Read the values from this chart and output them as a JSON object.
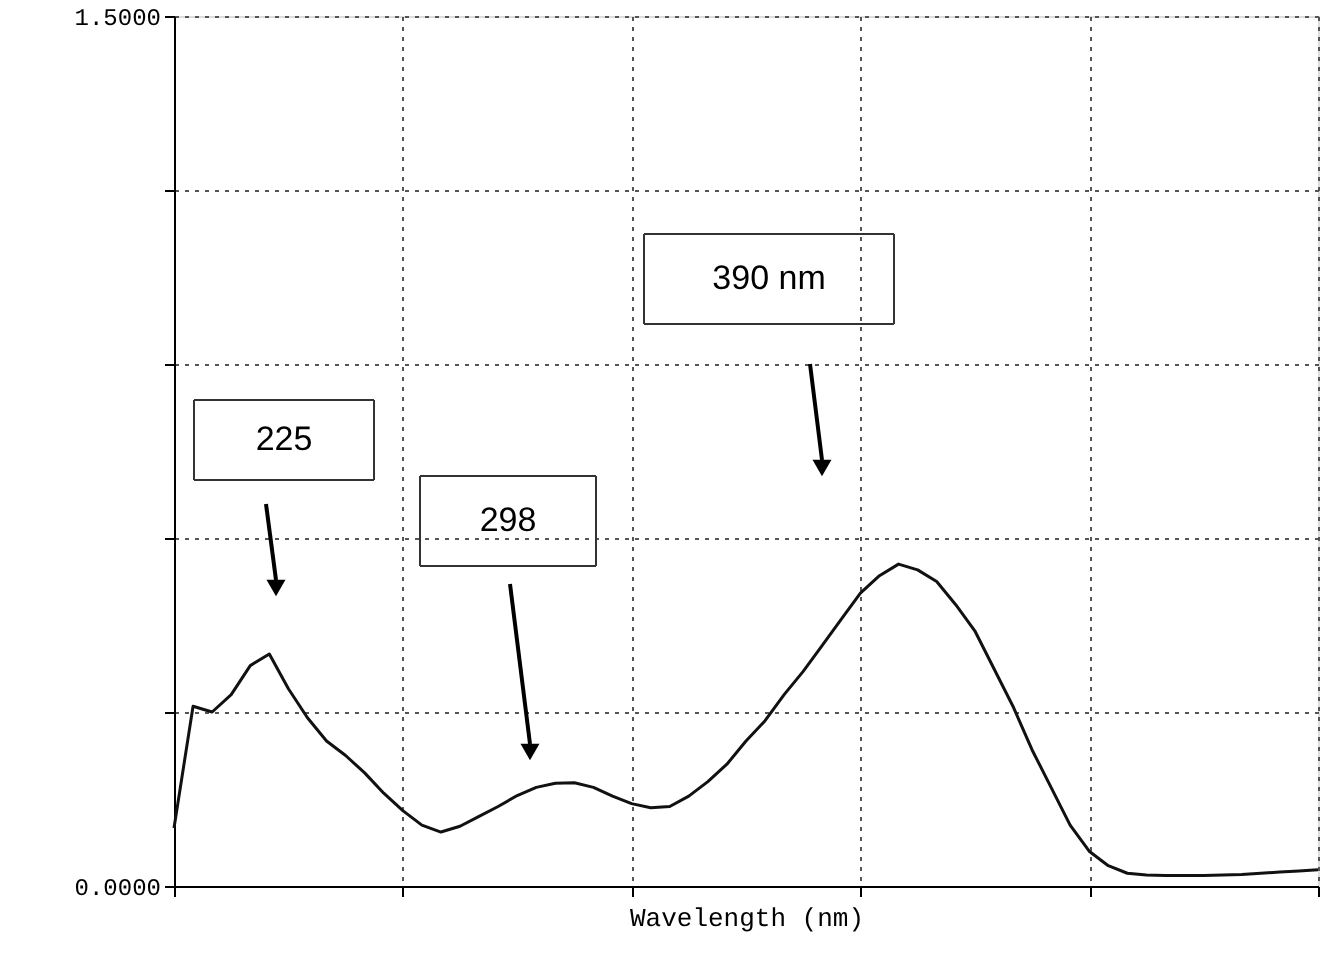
{
  "chart_data": {
    "type": "line",
    "xlabel": "Wavelength (nm)",
    "categories": [
      null,
      null,
      null,
      null,
      null,
      null,
      null,
      null,
      null,
      null,
      null,
      null,
      null,
      null,
      null,
      null,
      null,
      null,
      null,
      null,
      null,
      null,
      null,
      null,
      null,
      null,
      null,
      null,
      null,
      null,
      null,
      null,
      null,
      null,
      null,
      null,
      null,
      null,
      null,
      null,
      null,
      null,
      null,
      null,
      null,
      null,
      null,
      null,
      null,
      null,
      null,
      null,
      null,
      null,
      null,
      null,
      null,
      null,
      null,
      null,
      null
    ],
    "series": [
      {
        "color": "#111111",
        "values": [
          0.1,
          0.31,
          0.3,
          0.33,
          0.38,
          0.4,
          0.34,
          0.29,
          0.25,
          0.225,
          0.195,
          0.16,
          0.13,
          0.105,
          0.093,
          0.103,
          0.12,
          0.137,
          0.156,
          0.17,
          0.177,
          0.178,
          0.17,
          0.155,
          0.142,
          0.135,
          0.137,
          0.155,
          0.18,
          0.21,
          0.25,
          0.285,
          0.33,
          0.37,
          0.415,
          0.46,
          0.505,
          0.535,
          0.555,
          0.545,
          0.525,
          0.485,
          0.44,
          0.375,
          0.31,
          0.235,
          0.17,
          0.105,
          0.06,
          0.035,
          0.022,
          0.019,
          0.018,
          0.018,
          0.018,
          0.019,
          0.02,
          0.022,
          0.024,
          0.026,
          0.028
        ]
      }
    ],
    "ylim": [
      0,
      1.5
    ],
    "yticks": [
      {
        "value": 0,
        "label": "0.0000"
      },
      {
        "value": 0.3,
        "label": null
      },
      {
        "value": 0.6,
        "label": null
      },
      {
        "value": 0.9,
        "label": null
      },
      {
        "value": 1.2,
        "label": null
      },
      {
        "value": 1.5,
        "label": "1.5000"
      }
    ],
    "grid": true,
    "tick_labels": "y",
    "marker": "none",
    "line_style": "solid",
    "annotations": [
      "225",
      "298",
      "390 nm"
    ]
  }
}
